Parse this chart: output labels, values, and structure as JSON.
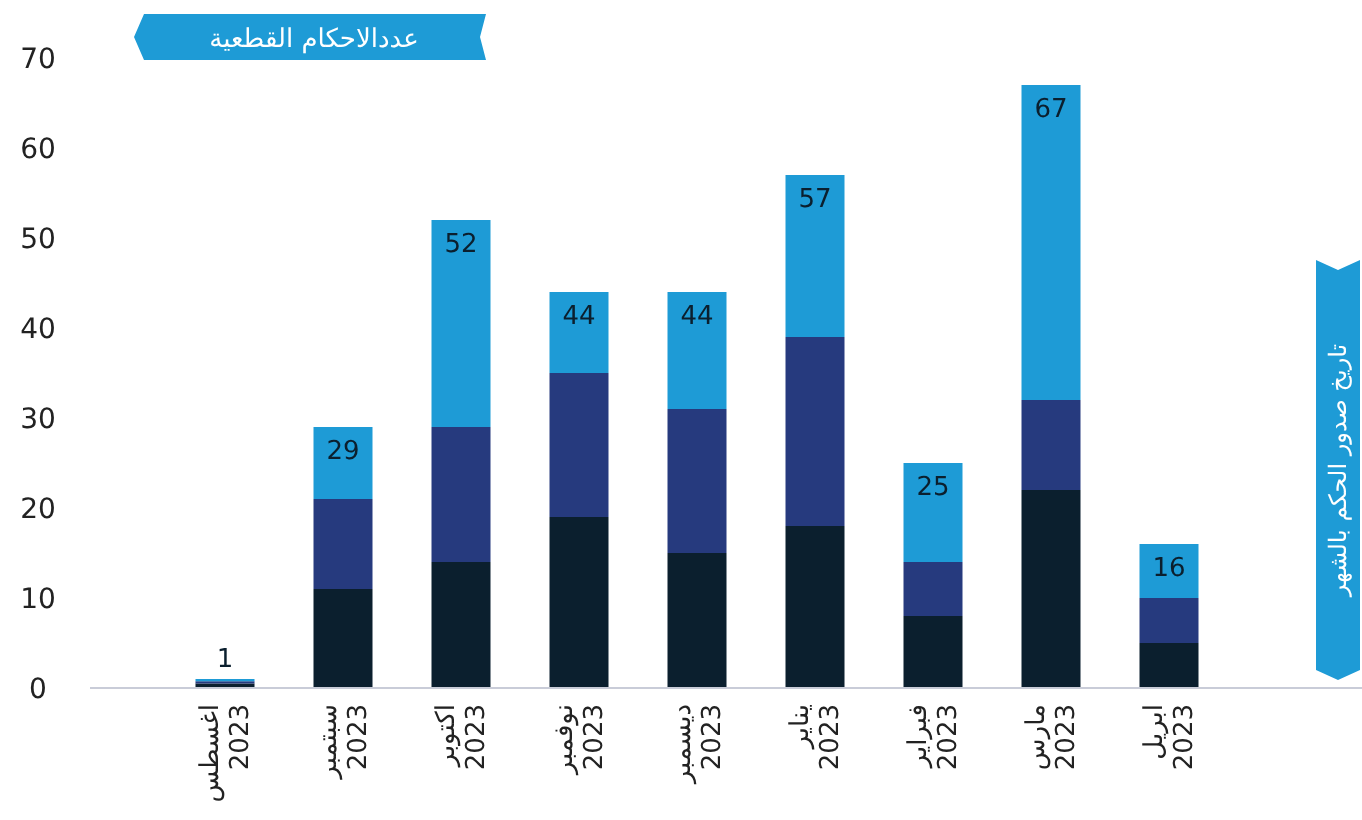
{
  "chart_data": {
    "type": "bar",
    "stacked": true,
    "title": "عددالاحكام القطعية",
    "ylabel": "تاريخ صدور الحكم بالشهر",
    "categories": [
      "اغسطس 2023",
      "سبتمبر 2023",
      "اكتوبر 2023",
      "نوفمبر 2023",
      "ديسمبر 2023",
      "يناير 2023",
      "فبراير 2023",
      "مارس 2023",
      "ابريل 2023"
    ],
    "series": [
      {
        "color": "#0b1f2e",
        "values": [
          0.5,
          11,
          14,
          19,
          15,
          18,
          8,
          22,
          5
        ]
      },
      {
        "color": "#263a7e",
        "values": [
          0.25,
          10,
          15,
          16,
          16,
          21,
          6,
          10,
          5
        ]
      },
      {
        "color": "#1e9bd6",
        "values": [
          0.25,
          8,
          23,
          9,
          13,
          18,
          11,
          35,
          6
        ]
      }
    ],
    "totals": [
      "1",
      "29",
      "52",
      "44",
      "44",
      "57",
      "25",
      "67",
      "16"
    ],
    "ylim": [
      0,
      70
    ],
    "yticks": [
      0,
      10,
      20,
      30,
      40,
      50,
      60,
      70
    ],
    "grid": false
  }
}
